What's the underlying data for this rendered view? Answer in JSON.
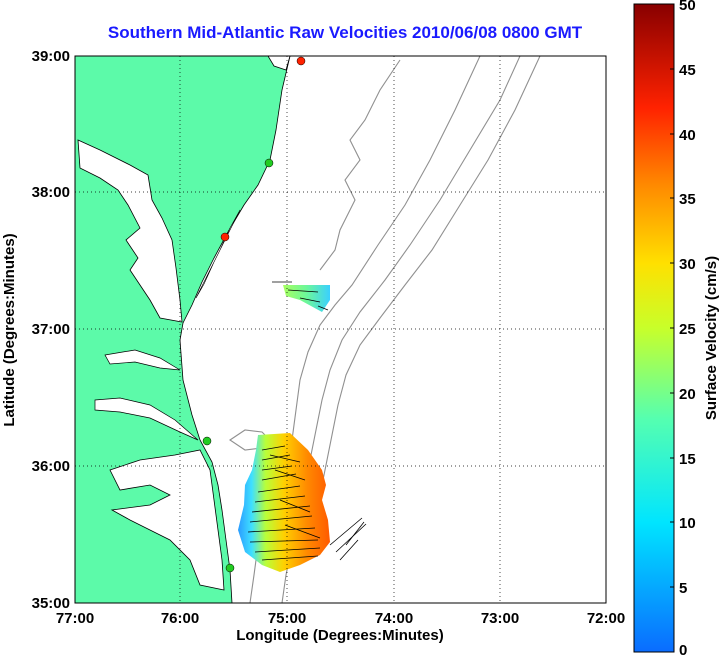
{
  "title": "Southern Mid-Atlantic Raw Velocities 2010/06/08 0800 GMT",
  "xaxis": {
    "label": "Longitude (Degrees:Minutes)",
    "ticks": [
      "77:00",
      "76:00",
      "75:00",
      "74:00",
      "73:00",
      "72:00"
    ]
  },
  "yaxis": {
    "label": "Latitude (Degrees:Minutes)",
    "ticks": [
      "39:00",
      "38:00",
      "37:00",
      "36:00",
      "35:00"
    ]
  },
  "colorbar": {
    "label": "Surface Velocity (cm/s)",
    "ticks": [
      "50",
      "45",
      "40",
      "35",
      "30",
      "25",
      "20",
      "15",
      "10",
      "5",
      "0"
    ],
    "min": 0,
    "max": 50
  },
  "chart_data": {
    "type": "heatmap",
    "title": "Southern Mid-Atlantic Raw Velocities 2010/06/08 0800 GMT",
    "xlabel": "Longitude (Degrees:Minutes)",
    "ylabel": "Latitude (Degrees:Minutes)",
    "xlim": [
      "77:00",
      "72:00"
    ],
    "ylim": [
      "35:00",
      "39:00"
    ],
    "grid": true,
    "colorbar_range_cm_s": [
      0,
      50
    ],
    "land_color": "#5cfaa9",
    "colors": {
      "title": "#1a1aff",
      "land": "#5cfaa9",
      "bathymetry": "#909090",
      "station_green": "#22cc22",
      "station_red": "#ff2200"
    },
    "stations": [
      {
        "color": "red",
        "lon": -74.82,
        "lat": 38.97
      },
      {
        "color": "green",
        "lon": -75.16,
        "lat": 38.22
      },
      {
        "color": "red",
        "lon": -75.58,
        "lat": 37.69
      },
      {
        "color": "green",
        "lon": -75.72,
        "lat": 36.18
      },
      {
        "color": "green",
        "lon": -75.52,
        "lat": 35.26
      }
    ]
  }
}
